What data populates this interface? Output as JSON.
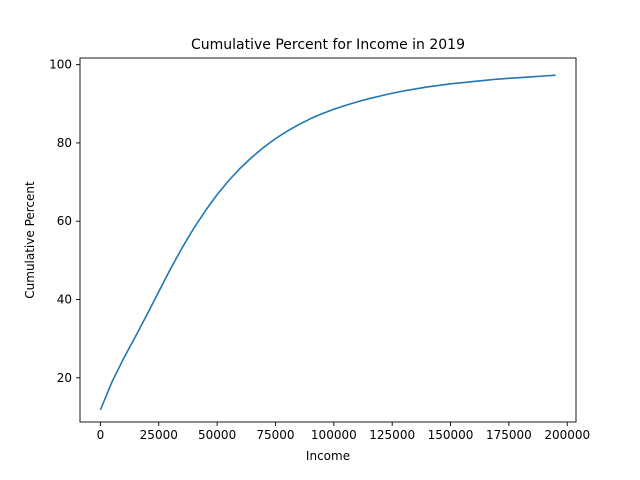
{
  "chart_data": {
    "type": "line",
    "title": "Cumulative Percent for Income in 2019",
    "xlabel": "Income",
    "ylabel": "Cumulative Percent",
    "xlim": [
      -8750,
      203750
    ],
    "ylim": [
      8.7,
      101.7
    ],
    "xticks": [
      0,
      25000,
      50000,
      75000,
      100000,
      125000,
      150000,
      175000,
      200000
    ],
    "yticks": [
      20,
      40,
      60,
      80,
      100
    ],
    "grid": false,
    "legend": "none",
    "colors": {
      "line": "#1f77b4",
      "axes": "#000000",
      "background": "#ffffff"
    },
    "series": [
      {
        "x": [
          0,
          5000,
          10000,
          15000,
          20000,
          25000,
          30000,
          35000,
          40000,
          45000,
          50000,
          55000,
          60000,
          65000,
          70000,
          75000,
          80000,
          85000,
          90000,
          95000,
          100000,
          105000,
          110000,
          115000,
          120000,
          125000,
          130000,
          135000,
          140000,
          145000,
          150000,
          155000,
          160000,
          165000,
          170000,
          175000,
          180000,
          185000,
          190000,
          195000
        ],
        "y": [
          11.8,
          19.0,
          25.0,
          30.5,
          36.2,
          42.0,
          47.8,
          53.2,
          58.2,
          62.7,
          66.8,
          70.4,
          73.6,
          76.4,
          78.9,
          81.1,
          83.0,
          84.7,
          86.2,
          87.5,
          88.6,
          89.6,
          90.5,
          91.3,
          92.0,
          92.7,
          93.3,
          93.8,
          94.3,
          94.7,
          95.1,
          95.4,
          95.7,
          96.0,
          96.3,
          96.5,
          96.7,
          96.9,
          97.1,
          97.3
        ]
      }
    ]
  }
}
